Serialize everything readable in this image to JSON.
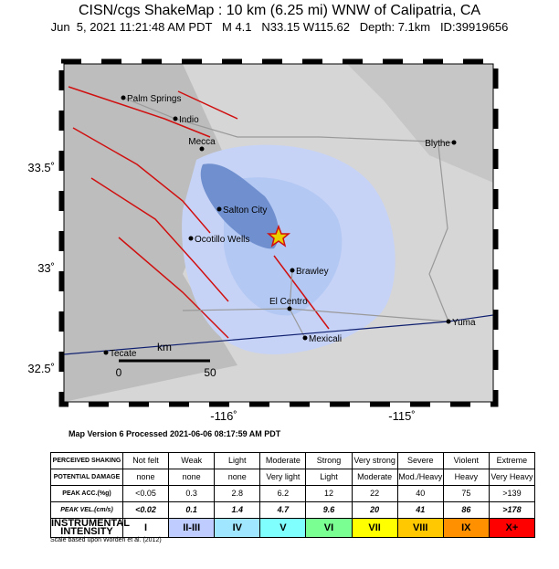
{
  "header": {
    "title": "CISN/cgs ShakeMap : 10 km (6.25 mi) WNW of Calipatria, CA",
    "subtitle": "Jun  5, 2021 11:21:48 AM PDT   M 4.1   N33.15 W115.62   Depth: 7.1km   ID:39919656"
  },
  "map": {
    "lat_labels": [
      "33.5˚",
      "33˚",
      "32.5˚"
    ],
    "lon_labels": [
      "-116˚",
      "-115˚"
    ],
    "places": [
      "Palm Springs",
      "Indio",
      "Mecca",
      "Blythe",
      "Salton City",
      "Ocotillo Wells",
      "Brawley",
      "El Centro",
      "Mexicali",
      "Tecate",
      "Yuma"
    ],
    "scale": {
      "unit": "km",
      "start": "0",
      "end": "50"
    }
  },
  "version": "Map Version 6 Processed 2021-06-06 08:17:59 AM PDT",
  "table": {
    "row_labels": [
      "PERCEIVED SHAKING",
      "POTENTIAL DAMAGE",
      "PEAK ACC.(%g)",
      "PEAK VEL.(cm/s)",
      "INSTRUMENTAL INTENSITY"
    ],
    "rows": [
      [
        "Not felt",
        "Weak",
        "Light",
        "Moderate",
        "Strong",
        "Very strong",
        "Severe",
        "Violent",
        "Extreme"
      ],
      [
        "none",
        "none",
        "none",
        "Very light",
        "Light",
        "Moderate",
        "Mod./Heavy",
        "Heavy",
        "Very Heavy"
      ],
      [
        "<0.05",
        "0.3",
        "2.8",
        "6.2",
        "12",
        "22",
        "40",
        "75",
        ">139"
      ],
      [
        "<0.02",
        "0.1",
        "1.4",
        "4.7",
        "9.6",
        "20",
        "41",
        "86",
        ">178"
      ],
      [
        "I",
        "II-III",
        "IV",
        "V",
        "VI",
        "VII",
        "VIII",
        "IX",
        "X+"
      ]
    ]
  },
  "note": "Scale based upon Worden et al. (2012)"
}
